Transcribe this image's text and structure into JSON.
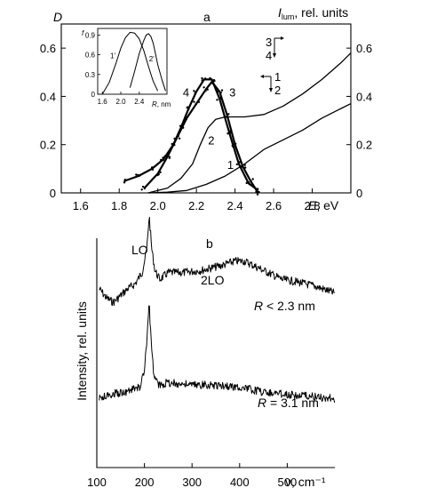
{
  "chart_data": [
    {
      "panel": "a",
      "type": "line",
      "ylabel_left": "D",
      "ylabel_right": "I_lum, rel. units",
      "ylabel_right_base": "I",
      "ylabel_right_sub": "lum",
      "ylabel_right_rest": ", rel. units",
      "xlabel": "E, eV",
      "xlabel_italic": "E",
      "xlabel_rest": ", eV",
      "xlim": [
        1.5,
        3.0
      ],
      "ylim_left": [
        0,
        0.7
      ],
      "ylim_right": [
        0,
        0.7
      ],
      "xticks": [
        "1.6",
        "1.8",
        "2.0",
        "2.2",
        "2.4",
        "2.6",
        "2.8"
      ],
      "xtick_values": [
        1.6,
        1.8,
        2.0,
        2.2,
        2.4,
        2.6,
        2.8
      ],
      "yticks_left": [
        "0",
        "0.2",
        "0.4",
        "0.6"
      ],
      "ytick_values": [
        0,
        0.2,
        0.4,
        0.6
      ],
      "yticks_right": [
        "0",
        "0.2",
        "0.4",
        "0.6"
      ],
      "annotations": [
        "3",
        "4",
        "1",
        "2"
      ],
      "series": [
        {
          "label": "1",
          "axis": "left",
          "x": [
            1.95,
            2.05,
            2.15,
            2.25,
            2.35,
            2.45,
            2.55,
            2.65,
            2.75,
            2.85,
            2.95,
            3.0
          ],
          "y": [
            0.0,
            0.003,
            0.01,
            0.035,
            0.07,
            0.12,
            0.18,
            0.22,
            0.26,
            0.31,
            0.35,
            0.37
          ]
        },
        {
          "label": "2",
          "axis": "left",
          "x": [
            1.95,
            2.05,
            2.12,
            2.18,
            2.22,
            2.26,
            2.3,
            2.35,
            2.45,
            2.55,
            2.65,
            2.75,
            2.85,
            2.95,
            3.0
          ],
          "y": [
            0.0,
            0.02,
            0.06,
            0.12,
            0.2,
            0.27,
            0.305,
            0.315,
            0.315,
            0.325,
            0.36,
            0.41,
            0.47,
            0.54,
            0.58
          ]
        },
        {
          "label": "3",
          "axis": "right",
          "x": [
            1.93,
            2.0,
            2.05,
            2.1,
            2.15,
            2.2,
            2.25,
            2.28,
            2.32,
            2.36,
            2.4,
            2.44,
            2.48,
            2.52
          ],
          "y": [
            0.02,
            0.08,
            0.15,
            0.23,
            0.31,
            0.37,
            0.43,
            0.46,
            0.42,
            0.32,
            0.2,
            0.11,
            0.05,
            0.0
          ]
        },
        {
          "label": "4",
          "axis": "right",
          "x": [
            1.83,
            1.9,
            1.97,
            2.03,
            2.08,
            2.12,
            2.16,
            2.2,
            2.24,
            2.28,
            2.32,
            2.37,
            2.42,
            2.47,
            2.52
          ],
          "y": [
            0.05,
            0.07,
            0.1,
            0.14,
            0.2,
            0.27,
            0.35,
            0.42,
            0.47,
            0.47,
            0.39,
            0.25,
            0.12,
            0.04,
            0.01
          ]
        }
      ],
      "inset": {
        "type": "line",
        "ylabel": "f",
        "xlabel": "R, nm",
        "xlabel_italic": "R",
        "xlabel_rest": ", nm",
        "xlim": [
          1.5,
          3.0
        ],
        "ylim": [
          0,
          1.0
        ],
        "xticks": [
          "1.6",
          "2.0",
          "2.4"
        ],
        "xtick_values": [
          1.6,
          2.0,
          2.4
        ],
        "yticks": [
          "0",
          "0.3",
          "0.6",
          "0.9"
        ],
        "ytick_values": [
          0,
          0.3,
          0.6,
          0.9
        ],
        "series": [
          {
            "label": "1'",
            "x": [
              1.6,
              1.75,
              1.9,
              2.0,
              2.1,
              2.2,
              2.3,
              2.4,
              2.5,
              2.6,
              2.7,
              2.8
            ],
            "y": [
              0.0,
              0.18,
              0.48,
              0.7,
              0.86,
              0.94,
              0.93,
              0.84,
              0.66,
              0.42,
              0.2,
              0.05
            ]
          },
          {
            "label": "2'",
            "x": [
              2.2,
              2.3,
              2.4,
              2.5,
              2.55,
              2.6,
              2.65,
              2.7,
              2.75,
              2.8,
              2.9,
              2.97
            ],
            "y": [
              0.1,
              0.35,
              0.62,
              0.82,
              0.9,
              0.92,
              0.88,
              0.78,
              0.62,
              0.45,
              0.2,
              0.05
            ]
          }
        ]
      }
    },
    {
      "panel": "b",
      "type": "line",
      "ylabel": "Intensity, rel. units",
      "xlabel": "ν, cm⁻¹",
      "xlim": [
        100,
        600
      ],
      "xticks": [
        "100",
        "200",
        "300",
        "400",
        "500"
      ],
      "xtick_values": [
        100,
        200,
        300,
        400,
        500
      ],
      "peak_labels": [
        "LO",
        "2LO"
      ],
      "series": [
        {
          "name": "R < 2.3 nm",
          "name_italic": "R",
          "name_rest": " < 2.3 nm",
          "x": [
            105,
            120,
            135,
            150,
            165,
            180,
            195,
            205,
            210,
            215,
            222,
            232,
            250,
            280,
            320,
            360,
            390,
            410,
            430,
            460,
            490,
            520,
            560,
            600
          ],
          "y": [
            0.78,
            0.74,
            0.72,
            0.75,
            0.78,
            0.8,
            0.85,
            0.95,
            1.1,
            0.96,
            0.86,
            0.82,
            0.85,
            0.85,
            0.86,
            0.88,
            0.9,
            0.9,
            0.88,
            0.85,
            0.82,
            0.81,
            0.79,
            0.76
          ]
        },
        {
          "name": "R = 3.1 nm",
          "name_italic": "R",
          "name_rest": " = 3.1 nm",
          "x": [
            105,
            130,
            160,
            190,
            200,
            206,
            210,
            214,
            220,
            230,
            250,
            300,
            350,
            400,
            450,
            500,
            550,
            600
          ],
          "y": [
            0.3,
            0.32,
            0.33,
            0.35,
            0.42,
            0.58,
            0.72,
            0.55,
            0.4,
            0.36,
            0.37,
            0.36,
            0.36,
            0.35,
            0.33,
            0.32,
            0.31,
            0.3
          ]
        }
      ]
    }
  ],
  "panel_a_label": "a",
  "panel_b_label": "b"
}
